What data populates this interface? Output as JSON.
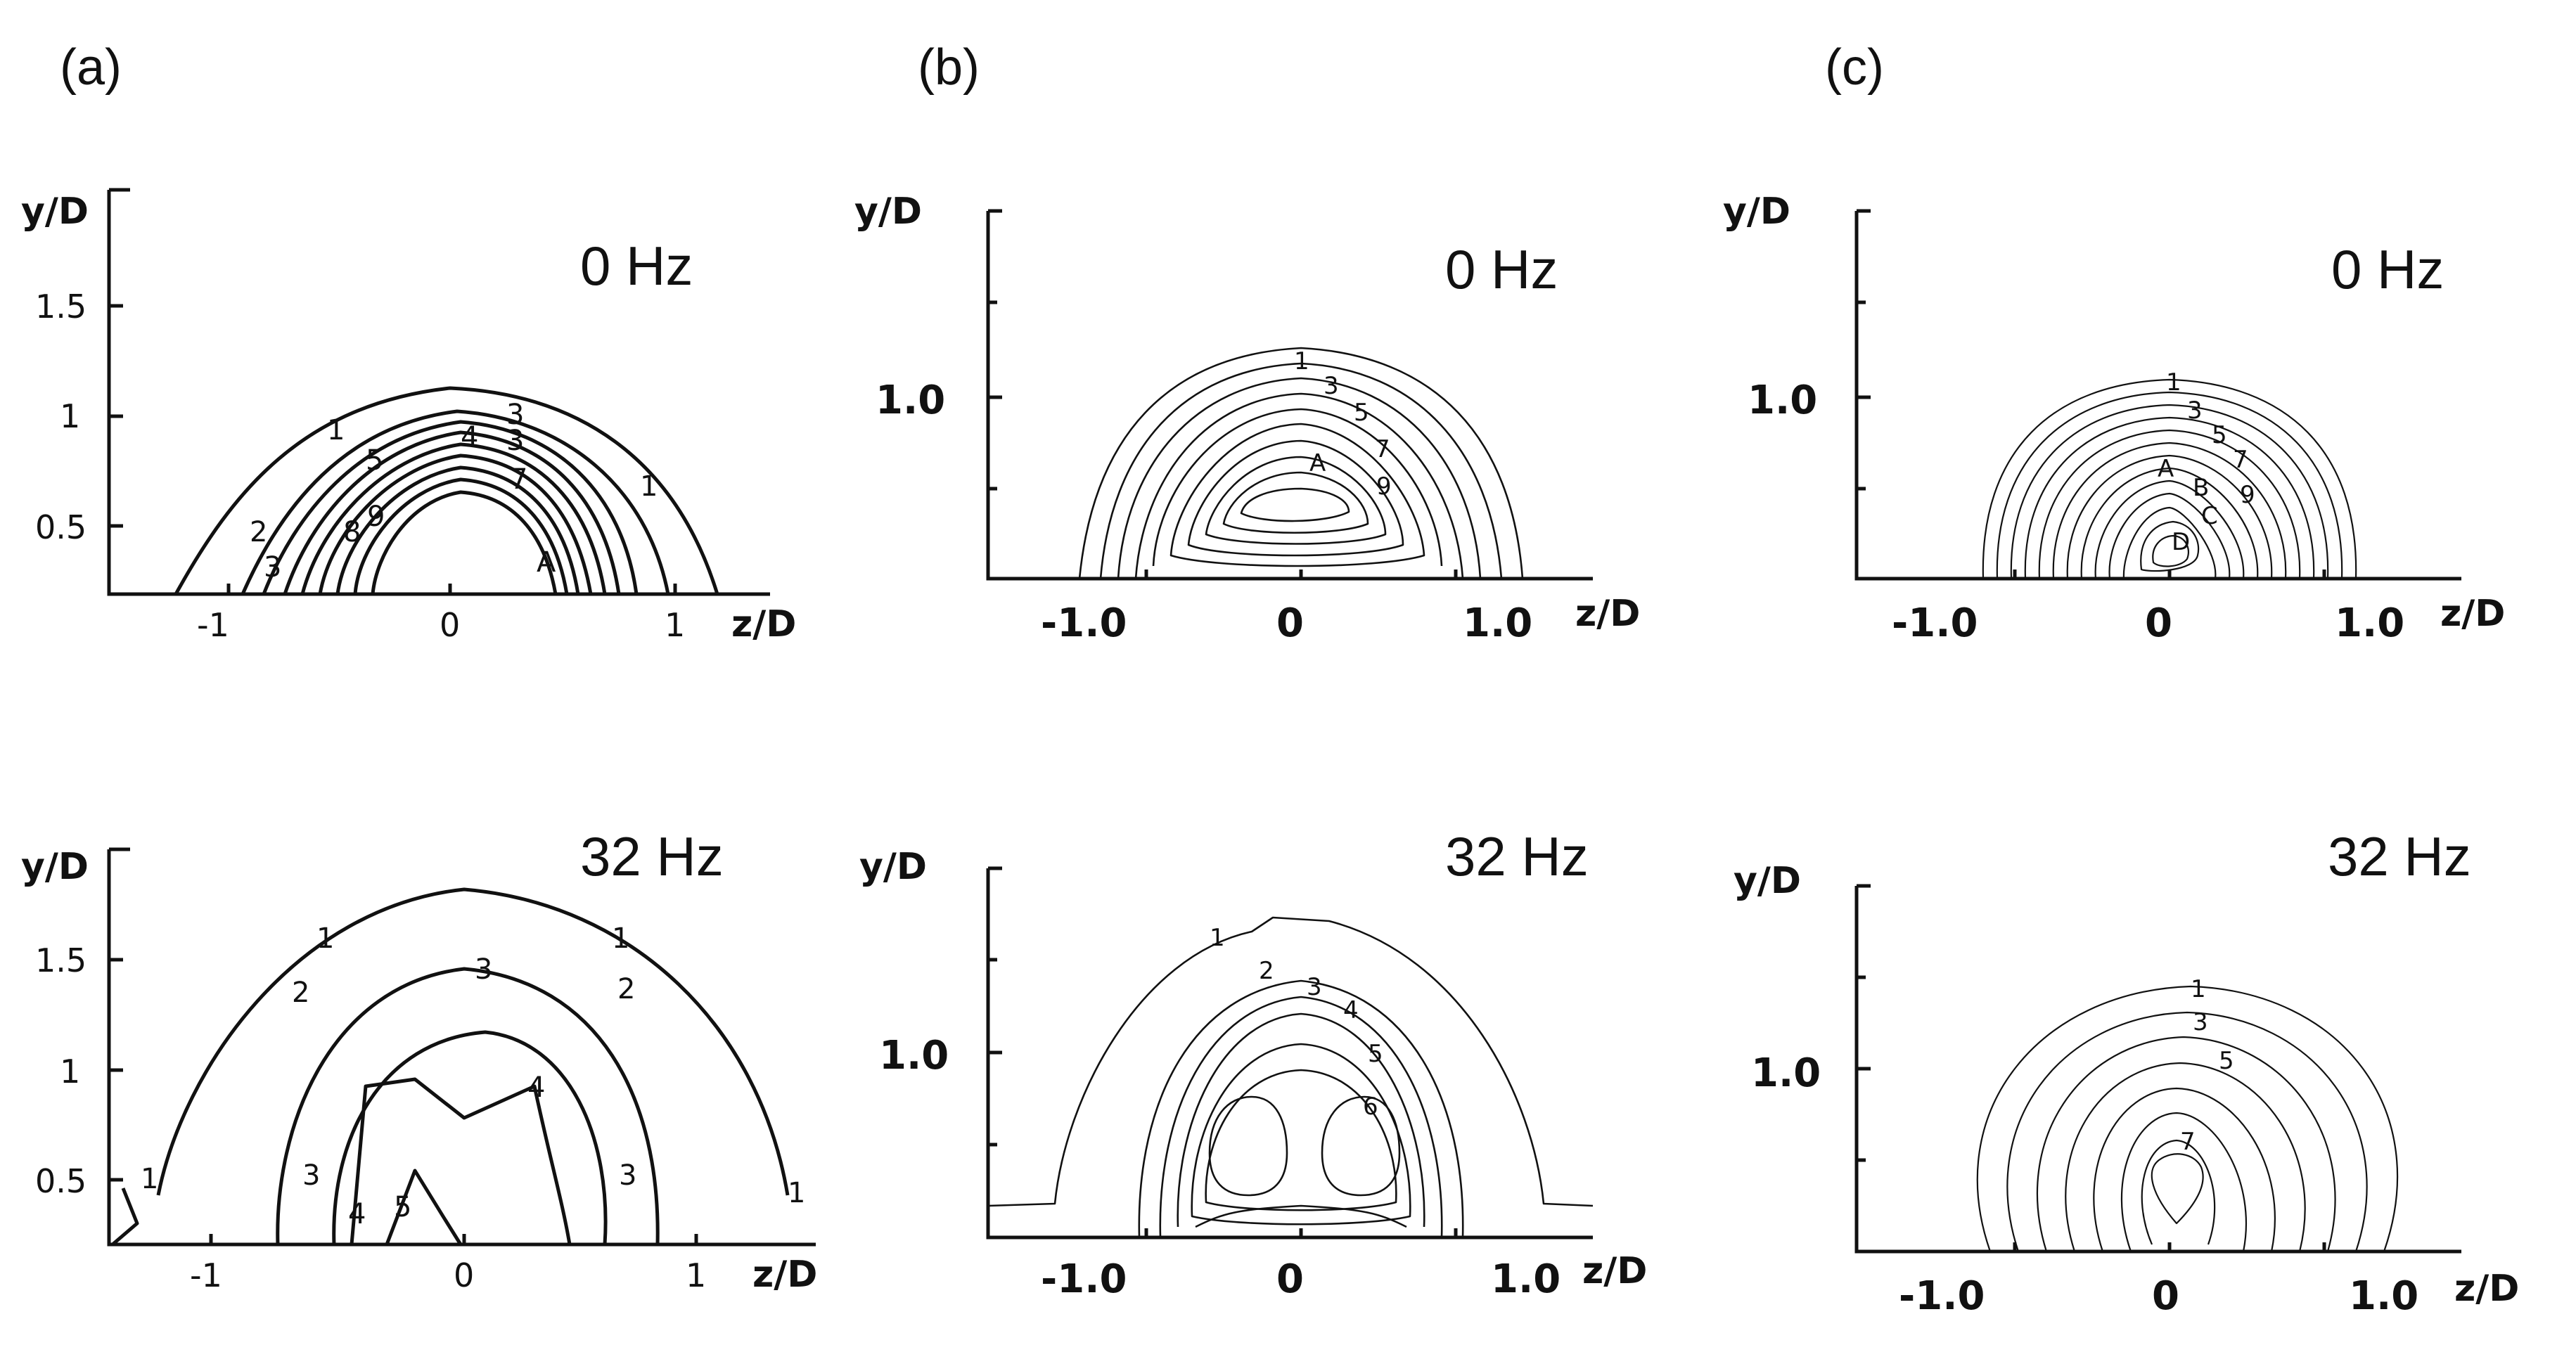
{
  "panels": {
    "a": {
      "letter": "(a)"
    },
    "b": {
      "letter": "(b)"
    },
    "c": {
      "letter": "(c)"
    }
  },
  "plots": [
    {
      "id": "a-top",
      "freq": "0 Hz",
      "ylabel": "y/D",
      "xlabel": "z/D",
      "yticks": [
        "1.5",
        "1",
        "0.5"
      ],
      "xticks": [
        "-1",
        "0",
        "1"
      ],
      "labels": [
        "1",
        "1",
        "2",
        "3",
        "3",
        "3",
        "4",
        "5",
        "7",
        "8",
        "9",
        "A"
      ]
    },
    {
      "id": "a-bottom",
      "freq": "32 Hz",
      "ylabel": "y/D",
      "xlabel": "z/D",
      "yticks": [
        "1.5",
        "1",
        "0.5"
      ],
      "xticks": [
        "-1",
        "0",
        "1"
      ],
      "labels": [
        "1",
        "1",
        "1",
        "1",
        "2",
        "2",
        "3",
        "3",
        "3",
        "4",
        "4",
        "5"
      ]
    },
    {
      "id": "b-top",
      "freq": "0 Hz",
      "ylabel": "y/D",
      "xlabel": "z/D",
      "yticks": [
        "1.0"
      ],
      "xticks": [
        "-1.0",
        "0",
        "1.0"
      ],
      "labels": [
        "1",
        "3",
        "5",
        "7",
        "9",
        "A"
      ]
    },
    {
      "id": "b-bottom",
      "freq": "32 Hz",
      "ylabel": "y/D",
      "xlabel": "z/D",
      "yticks": [
        "1.0"
      ],
      "xticks": [
        "-1.0",
        "0",
        "1.0"
      ],
      "labels": [
        "1",
        "2",
        "3",
        "4",
        "5",
        "6"
      ]
    },
    {
      "id": "c-top",
      "freq": "0 Hz",
      "ylabel": "y/D",
      "xlabel": "z/D",
      "yticks": [
        "1.0"
      ],
      "xticks": [
        "-1.0",
        "0",
        "1.0"
      ],
      "labels": [
        "1",
        "3",
        "5",
        "7",
        "A",
        "B",
        "9",
        "C",
        "D"
      ]
    },
    {
      "id": "c-bottom",
      "freq": "32 Hz",
      "ylabel": "y/D",
      "xlabel": "z/D",
      "yticks": [
        "1.0"
      ],
      "xticks": [
        "-1.0",
        "0",
        "1.0"
      ],
      "labels": [
        "1",
        "3",
        "5",
        "7"
      ]
    }
  ]
}
